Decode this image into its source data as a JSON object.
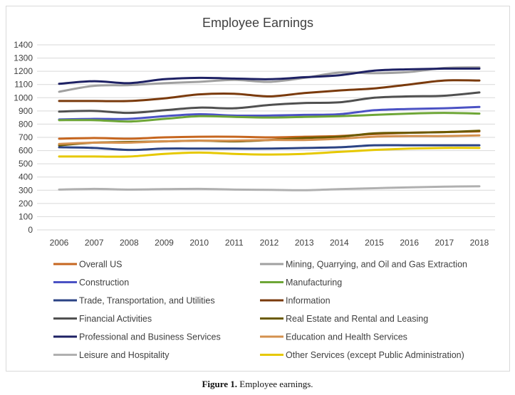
{
  "chart_data": {
    "type": "line",
    "title": "Employee Earnings",
    "xlabel": "",
    "ylabel": "",
    "x": [
      2006,
      2007,
      2008,
      2009,
      2010,
      2011,
      2012,
      2013,
      2014,
      2015,
      2016,
      2017,
      2018
    ],
    "ylim": [
      0,
      1400
    ],
    "yticks": [
      0,
      100,
      200,
      300,
      400,
      500,
      600,
      700,
      800,
      900,
      1000,
      1100,
      1200,
      1300,
      1400
    ],
    "grid": true,
    "legend_position": "bottom",
    "series": [
      {
        "name": "Overall US",
        "color": "#c6661f",
        "values": [
          690,
          695,
          690,
          700,
          705,
          705,
          700,
          705,
          710,
          725,
          735,
          740,
          745
        ]
      },
      {
        "name": "Mining, Quarrying, and Oil and Gas Extraction",
        "color": "#a0a0a0",
        "values": [
          1045,
          1090,
          1095,
          1110,
          1120,
          1135,
          1120,
          1150,
          1190,
          1185,
          1195,
          1225,
          1230
        ]
      },
      {
        "name": "Construction",
        "color": "#4b52c4",
        "values": [
          835,
          840,
          840,
          860,
          875,
          865,
          865,
          870,
          875,
          905,
          915,
          920,
          930
        ]
      },
      {
        "name": "Manufacturing",
        "color": "#6ea637",
        "values": [
          830,
          830,
          820,
          840,
          860,
          855,
          850,
          855,
          860,
          870,
          880,
          885,
          880
        ]
      },
      {
        "name": "Trade, Transportation, and Utilities",
        "color": "#2b4384",
        "values": [
          625,
          620,
          605,
          615,
          615,
          615,
          615,
          620,
          625,
          640,
          640,
          640,
          640
        ]
      },
      {
        "name": "Information",
        "color": "#7a3a0c",
        "values": [
          975,
          975,
          975,
          995,
          1025,
          1030,
          1010,
          1035,
          1055,
          1070,
          1100,
          1130,
          1130
        ]
      },
      {
        "name": "Financial Activities",
        "color": "#505050",
        "values": [
          895,
          900,
          885,
          905,
          925,
          920,
          945,
          960,
          965,
          1000,
          1010,
          1015,
          1040
        ]
      },
      {
        "name": "Real Estate and Rental and Leasing",
        "color": "#6b5a00",
        "values": [
          640,
          660,
          665,
          670,
          675,
          670,
          680,
          695,
          705,
          730,
          735,
          740,
          750
        ]
      },
      {
        "name": "Professional and Business Services",
        "color": "#1e2164",
        "values": [
          1105,
          1125,
          1110,
          1140,
          1150,
          1145,
          1140,
          1155,
          1170,
          1205,
          1215,
          1220,
          1220
        ]
      },
      {
        "name": "Education and Health Services",
        "color": "#d4904e",
        "values": [
          650,
          660,
          660,
          670,
          675,
          675,
          680,
          680,
          690,
          705,
          710,
          710,
          715
        ]
      },
      {
        "name": "Leisure and Hospitality",
        "color": "#b0b0b0",
        "values": [
          305,
          310,
          305,
          308,
          310,
          305,
          303,
          300,
          308,
          315,
          322,
          327,
          330
        ]
      },
      {
        "name": "Other Services (except Public Administration)",
        "color": "#e6c800",
        "values": [
          555,
          555,
          555,
          575,
          585,
          575,
          570,
          575,
          590,
          605,
          615,
          620,
          620
        ]
      }
    ]
  },
  "caption": {
    "label": "Figure 1.",
    "text": "Employee earnings."
  }
}
